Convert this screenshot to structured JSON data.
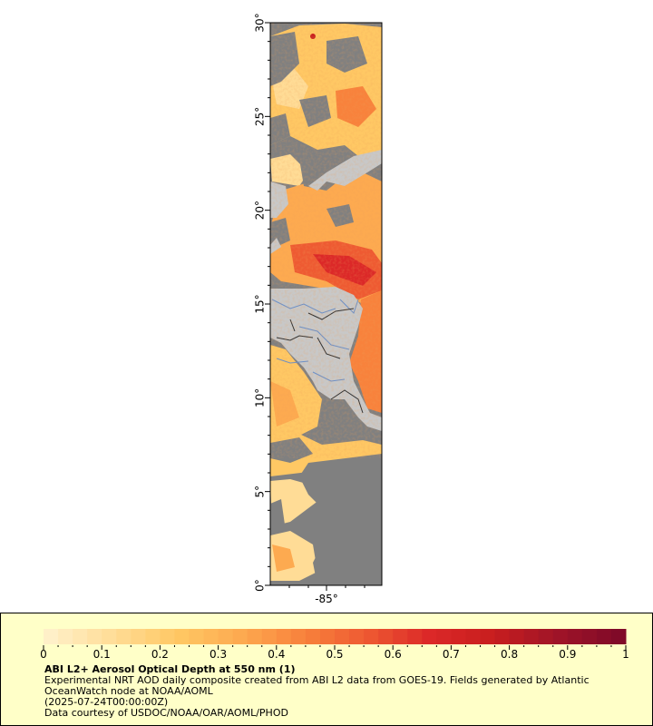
{
  "map": {
    "lat_labels": [
      "30°",
      "25°",
      "20°",
      "15°",
      "10°",
      "5°",
      "0°"
    ],
    "lat_values": [
      30,
      25,
      20,
      15,
      10,
      5,
      0
    ],
    "lon_labels": [
      "-85°"
    ],
    "lat_range": [
      0,
      30
    ],
    "colors": {
      "ocean_no_data": "#808080",
      "land": "#c8c8c8",
      "rivers": "#6a8fc8",
      "borders": "#303030"
    }
  },
  "legend": {
    "tick_labels": [
      "0",
      "0.1",
      "0.2",
      "0.3",
      "0.4",
      "0.5",
      "0.6",
      "0.7",
      "0.8",
      "0.9",
      "1"
    ],
    "range": [
      0,
      1
    ],
    "title": "ABI L2+ Aerosol Optical Depth at 550 nm (1)",
    "line1": "Experimental NRT AOD daily composite created from ABI L2 data from GOES-19. Fields generated by Atlantic OceanWatch node at NOAA/AOML",
    "line2": "(2025-07-24T00:00:00Z)",
    "line3": "Data courtesy of USDOC/NOAA/OAR/AOML/PHOD",
    "colorbar_colors": [
      "#fff0c8",
      "#ffdc96",
      "#ffc864",
      "#fdaa50",
      "#f8823c",
      "#ee5a32",
      "#dc2828",
      "#c81e1e",
      "#a01428",
      "#800a28"
    ]
  }
}
